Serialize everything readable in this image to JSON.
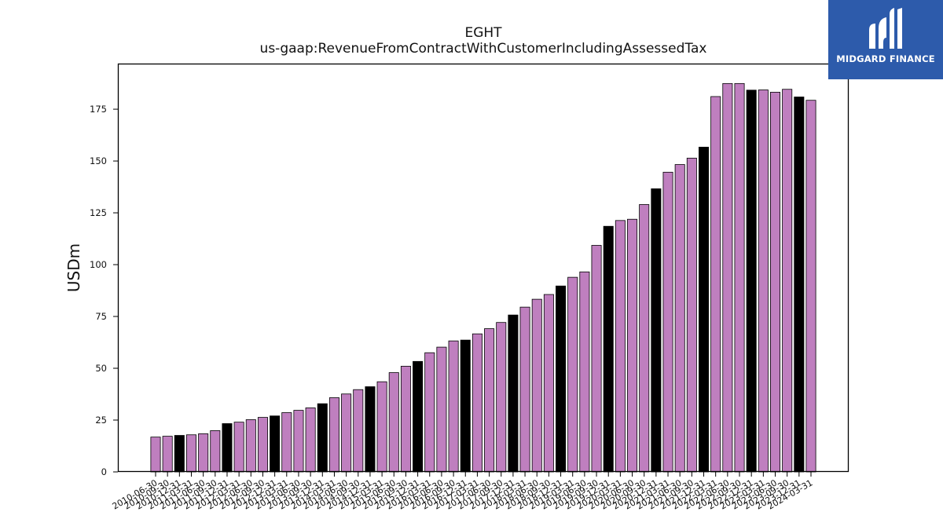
{
  "chart_data": {
    "type": "bar",
    "title": "EGHT",
    "subtitle": "us-gaap:RevenueFromContractWithCustomerIncludingAssessedTax",
    "ylabel": "USDm",
    "xlabel": "",
    "ylim": [
      0,
      197
    ],
    "yticks": [
      0,
      25,
      50,
      75,
      100,
      125,
      150,
      175
    ],
    "grid": false,
    "colors": {
      "quarter": "#bf7fbf",
      "fiscal_year_end": "#000000",
      "edge": "#000000"
    },
    "categories": [
      "2010-06-30",
      "2010-09-30",
      "2010-12-31",
      "2011-03-31",
      "2011-06-30",
      "2011-09-30",
      "2011-12-31",
      "2012-03-31",
      "2012-06-30",
      "2012-09-30",
      "2012-12-31",
      "2013-03-31",
      "2013-06-30",
      "2013-09-30",
      "2013-12-31",
      "2014-03-31",
      "2014-06-30",
      "2014-09-30",
      "2014-12-31",
      "2015-03-31",
      "2015-06-30",
      "2015-09-30",
      "2015-12-31",
      "2016-03-31",
      "2016-06-30",
      "2016-09-30",
      "2016-12-31",
      "2017-03-31",
      "2017-06-30",
      "2017-09-30",
      "2017-12-31",
      "2018-03-31",
      "2018-06-30",
      "2018-09-30",
      "2018-12-31",
      "2019-03-31",
      "2019-06-30",
      "2019-09-30",
      "2019-12-31",
      "2020-03-31",
      "2020-06-30",
      "2020-09-30",
      "2020-12-31",
      "2021-03-31",
      "2021-06-30",
      "2021-09-30",
      "2021-12-31",
      "2022-03-31",
      "2022-06-30",
      "2022-09-30",
      "2022-12-31",
      "2023-03-31",
      "2023-06-30",
      "2023-09-30",
      "2023-12-31",
      "2024-03-31"
    ],
    "values": [
      16.8,
      17.2,
      17.6,
      17.9,
      18.4,
      19.9,
      23.3,
      24.0,
      25.2,
      26.3,
      27.0,
      28.6,
      29.7,
      30.9,
      32.9,
      35.8,
      37.6,
      39.7,
      41.1,
      43.5,
      47.9,
      51.0,
      53.3,
      57.5,
      60.2,
      63.2,
      63.6,
      66.6,
      69.1,
      72.1,
      75.7,
      79.5,
      83.3,
      85.6,
      89.7,
      93.9,
      96.5,
      109.3,
      118.5,
      121.3,
      121.9,
      129.0,
      136.6,
      144.6,
      148.3,
      151.4,
      156.7,
      181.1,
      187.4,
      187.4,
      184.2,
      184.3,
      183.2,
      184.6,
      180.9,
      179.3
    ],
    "highlight": [
      false,
      false,
      true,
      false,
      false,
      false,
      true,
      false,
      false,
      false,
      true,
      false,
      false,
      false,
      true,
      false,
      false,
      false,
      true,
      false,
      false,
      false,
      true,
      false,
      false,
      false,
      true,
      false,
      false,
      false,
      true,
      false,
      false,
      false,
      true,
      false,
      false,
      false,
      true,
      false,
      false,
      false,
      true,
      false,
      false,
      false,
      true,
      false,
      false,
      false,
      true,
      false,
      false,
      false,
      true,
      false
    ]
  },
  "logo": {
    "name": "MIDGARD FINANCE",
    "background": "#2d5bab"
  }
}
